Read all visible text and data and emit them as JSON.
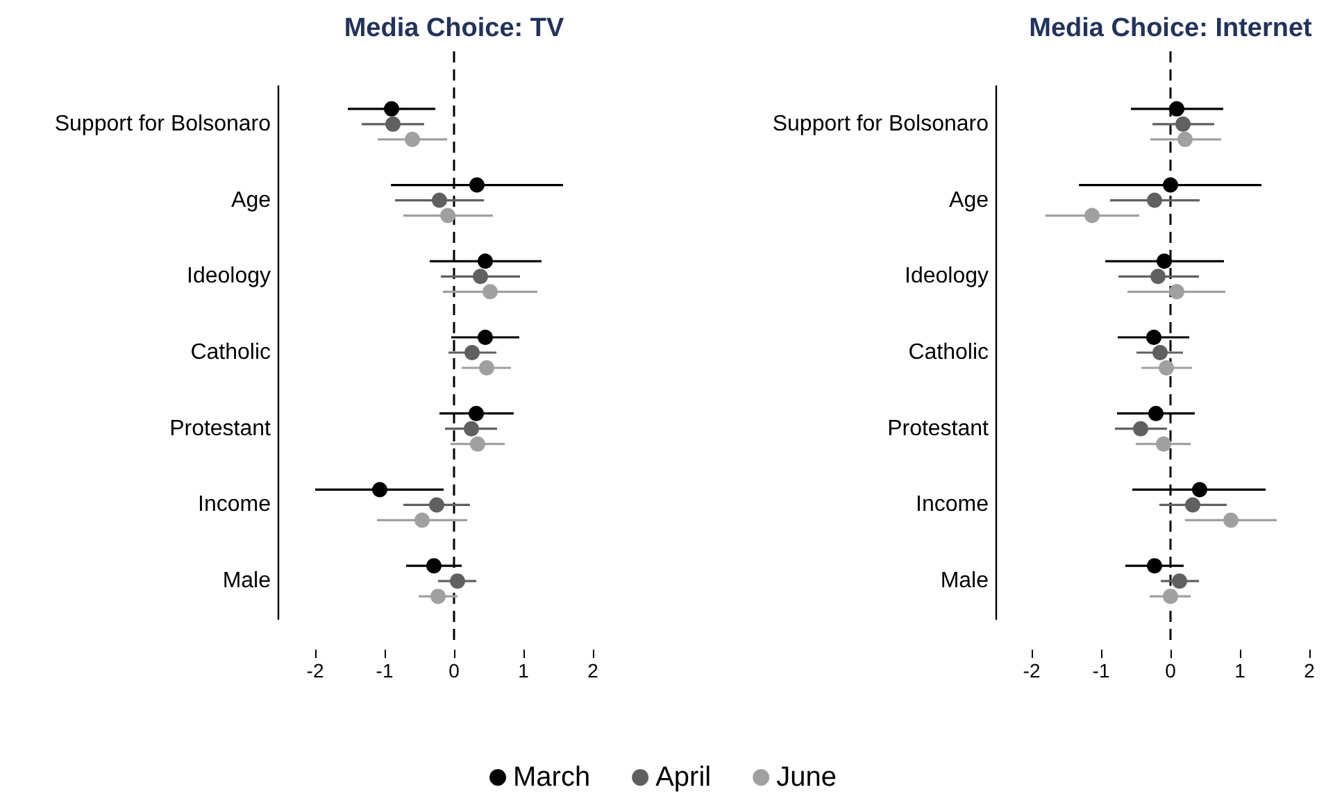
{
  "chart_data": [
    {
      "type": "scatter",
      "title": "Media Choice: TV",
      "orientation": "horizontal",
      "marker": "circle",
      "grid": false,
      "legend": "bottom",
      "categories": [
        "Support for Bolsonaro",
        "Age",
        "Ideology",
        "Catholic",
        "Protestant",
        "Income",
        "Male"
      ],
      "xlim": [
        -2,
        2
      ],
      "xticks": [
        -2,
        -1,
        0,
        1,
        2
      ],
      "ref_lines": [
        {
          "axis": "x",
          "value": 0,
          "color": "#000000",
          "line_style": "dashed"
        }
      ],
      "series": [
        {
          "name": "March",
          "color": "#000000",
          "values": [
            -0.9,
            0.33,
            0.45,
            0.45,
            0.32,
            -1.07,
            -0.29
          ],
          "errors": [
            [
              -1.53,
              -0.27
            ],
            [
              -0.91,
              1.57
            ],
            [
              -0.35,
              1.26
            ],
            [
              -0.04,
              0.94
            ],
            [
              -0.21,
              0.86
            ],
            [
              -2.0,
              -0.15
            ],
            [
              -0.69,
              0.11
            ]
          ]
        },
        {
          "name": "April",
          "color": "#606060",
          "values": [
            -0.88,
            -0.21,
            0.38,
            0.26,
            0.25,
            -0.25,
            0.05
          ],
          "errors": [
            [
              -1.33,
              -0.43
            ],
            [
              -0.85,
              0.43
            ],
            [
              -0.19,
              0.95
            ],
            [
              -0.08,
              0.61
            ],
            [
              -0.13,
              0.62
            ],
            [
              -0.73,
              0.23
            ],
            [
              -0.23,
              0.32
            ]
          ]
        },
        {
          "name": "June",
          "color": "#a0a0a0",
          "values": [
            -0.6,
            -0.09,
            0.52,
            0.47,
            0.34,
            -0.46,
            -0.23
          ],
          "errors": [
            [
              -1.1,
              -0.1
            ],
            [
              -0.73,
              0.56
            ],
            [
              -0.16,
              1.2
            ],
            [
              0.11,
              0.82
            ],
            [
              -0.05,
              0.73
            ],
            [
              -1.11,
              0.19
            ],
            [
              -0.51,
              0.05
            ]
          ]
        }
      ]
    },
    {
      "type": "scatter",
      "title": "Media Choice: Internet",
      "orientation": "horizontal",
      "marker": "circle",
      "grid": false,
      "categories": [
        "Support for Bolsonaro",
        "Age",
        "Ideology",
        "Catholic",
        "Protestant",
        "Income",
        "Male"
      ],
      "xlim": [
        -2,
        2
      ],
      "xticks": [
        -2,
        -1,
        0,
        1,
        2
      ],
      "ref_lines": [
        {
          "axis": "x",
          "value": 0,
          "color": "#000000",
          "line_style": "dashed"
        }
      ],
      "series": [
        {
          "color": "#000000",
          "values": [
            0.09,
            0,
            -0.09,
            -0.24,
            -0.21,
            0.42,
            -0.23
          ],
          "errors": [
            [
              -0.57,
              0.76
            ],
            [
              -1.32,
              1.31
            ],
            [
              -0.94,
              0.77
            ],
            [
              -0.76,
              0.27
            ],
            [
              -0.77,
              0.35
            ],
            [
              -0.55,
              1.37
            ],
            [
              -0.65,
              0.19
            ]
          ]
        },
        {
          "color": "#606060",
          "values": [
            0.18,
            -0.23,
            -0.18,
            -0.15,
            -0.43,
            0.32,
            0.13
          ],
          "errors": [
            [
              -0.26,
              0.63
            ],
            [
              -0.87,
              0.42
            ],
            [
              -0.75,
              0.41
            ],
            [
              -0.49,
              0.18
            ],
            [
              -0.8,
              -0.05
            ],
            [
              -0.16,
              0.81
            ],
            [
              -0.14,
              0.41
            ]
          ]
        },
        {
          "color": "#a0a0a0",
          "values": [
            0.21,
            -1.13,
            0.09,
            -0.06,
            -0.1,
            0.87,
            0
          ],
          "errors": [
            [
              -0.29,
              0.73
            ],
            [
              -1.8,
              -0.45
            ],
            [
              -0.62,
              0.79
            ],
            [
              -0.42,
              0.31
            ],
            [
              -0.5,
              0.29
            ],
            [
              0.21,
              1.53
            ],
            [
              -0.3,
              0.29
            ]
          ]
        }
      ]
    }
  ]
}
